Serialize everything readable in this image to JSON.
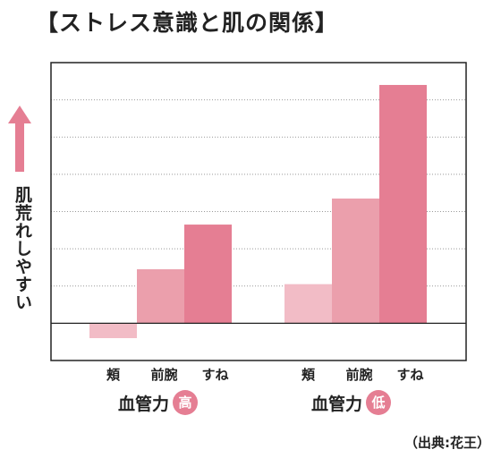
{
  "title": "【ストレス意識と肌の関係】",
  "y_axis_label": "肌荒れしやすい",
  "groups": [
    {
      "label": "血管力",
      "badge": "高"
    },
    {
      "label": "血管力",
      "badge": "低"
    }
  ],
  "source": "（出典:花王）",
  "colors": {
    "light": "#f2bcc6",
    "medium": "#eb9fac",
    "dark": "#e57e93",
    "badge": "#e57e93",
    "arrow": "#e57e93"
  },
  "chart_data": {
    "type": "bar",
    "categories": [
      "頬",
      "前腕",
      "すね"
    ],
    "groups": [
      "血管力高",
      "血管力低"
    ],
    "series": [
      {
        "values": [
          -0.4,
          1.45,
          2.65
        ]
      },
      {
        "values": [
          1.05,
          3.35,
          6.4
        ]
      }
    ],
    "ylim": [
      -1.0,
      7.0
    ],
    "grid": true,
    "title": "",
    "xlabel": "",
    "ylabel": "肌荒れしやすい"
  }
}
